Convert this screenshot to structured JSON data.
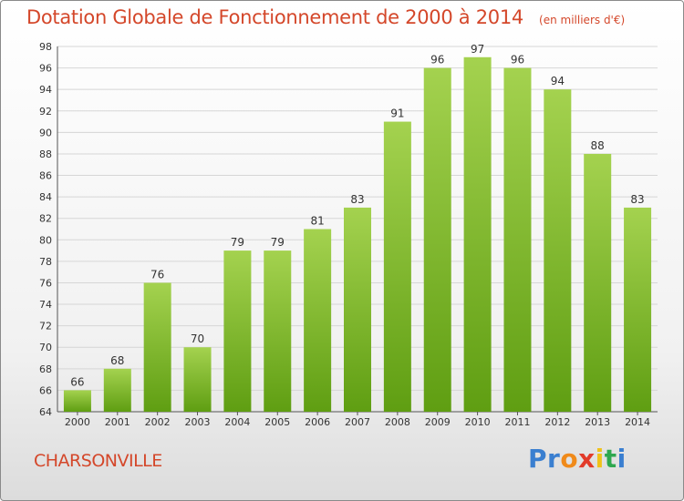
{
  "header": {
    "title": "Dotation Globale de Fonctionnement de 2000 à 2014",
    "subtitle": "(en milliers d'€)"
  },
  "footer": {
    "commune": "CHARSONVILLE",
    "logo_text": "Proxiti",
    "logo_colors": [
      "#3a7fd0",
      "#3a7fd0",
      "#f08a1a",
      "#e23b2a",
      "#f0c21a",
      "#2fa84f",
      "#3a7fd0"
    ]
  },
  "colors": {
    "accent": "#d4472a",
    "bar_top": "#a4d24f",
    "bar_bottom": "#5f9e12",
    "grid": "#d6d6d6"
  },
  "chart_data": {
    "type": "bar",
    "categories": [
      "2000",
      "2001",
      "2002",
      "2003",
      "2004",
      "2005",
      "2006",
      "2007",
      "2008",
      "2009",
      "2010",
      "2011",
      "2012",
      "2013",
      "2014"
    ],
    "values": [
      66,
      68,
      76,
      70,
      79,
      79,
      81,
      83,
      91,
      96,
      97,
      96,
      94,
      88,
      83
    ],
    "title": "Dotation Globale de Fonctionnement de 2000 à 2014",
    "subtitle": "(en milliers d'€)",
    "ylim": [
      64,
      98
    ],
    "yticks": [
      64,
      66,
      68,
      70,
      72,
      74,
      76,
      78,
      80,
      82,
      84,
      86,
      88,
      90,
      92,
      94,
      96,
      98
    ],
    "grid": true,
    "data_labels": true
  }
}
